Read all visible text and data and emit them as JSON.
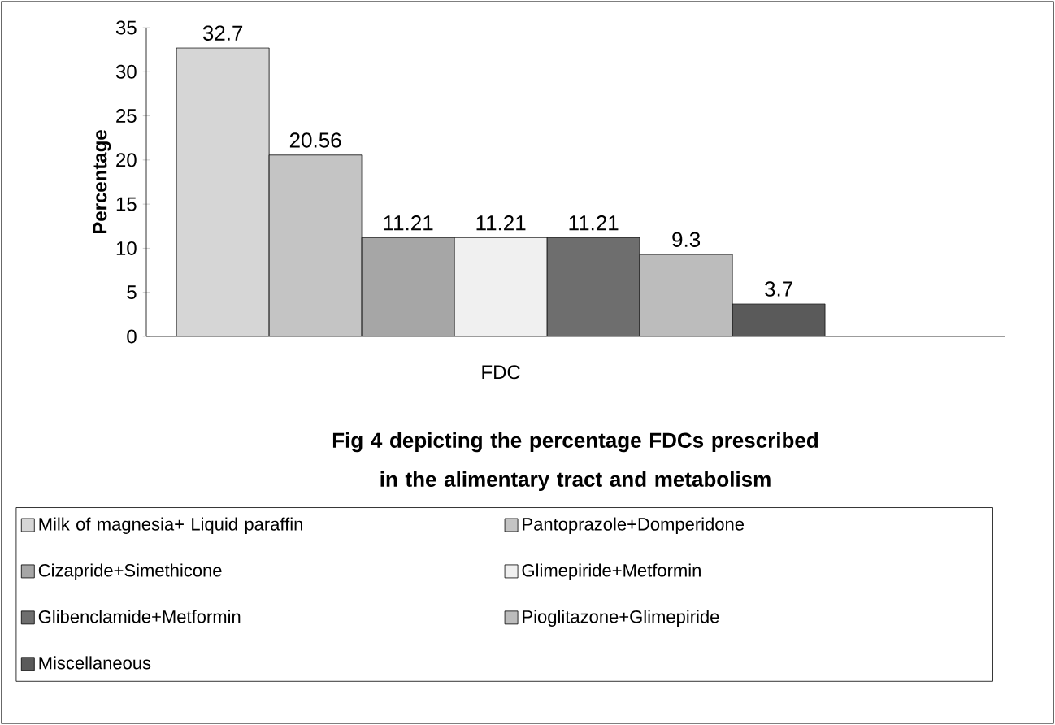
{
  "chart_data": {
    "type": "bar",
    "title": "Fig 4 depicting the percentage FDCs prescribed in the alimentary tract and metabolism",
    "ylabel": "Percentage",
    "categories": [
      "FDC"
    ],
    "series": [
      {
        "name": "Milk of magnesia+ Liquid paraffin",
        "color": "#d6d6d6",
        "values": [
          32.7
        ]
      },
      {
        "name": "Pantoprazole+Domperidone",
        "color": "#c4c4c4",
        "values": [
          20.56
        ]
      },
      {
        "name": "Cizapride+Simethicone",
        "color": "#a6a6a6",
        "values": [
          11.21
        ]
      },
      {
        "name": "Glimepiride+Metformin",
        "color": "#f0f0f0",
        "values": [
          11.21
        ]
      },
      {
        "name": "Glibenclamide+Metformin",
        "color": "#6e6e6e",
        "values": [
          11.21
        ]
      },
      {
        "name": "Pioglitazone+Glimepiride",
        "color": "#bcbcbc",
        "values": [
          9.3
        ]
      },
      {
        "name": "Miscellaneous",
        "color": "#5a5a5a",
        "values": [
          3.7
        ]
      }
    ],
    "ylim": [
      0,
      35
    ],
    "yticks": [
      0,
      5,
      10,
      15,
      20,
      25,
      30,
      35
    ],
    "data_labels": true,
    "grid": false,
    "legend": "bottom"
  }
}
